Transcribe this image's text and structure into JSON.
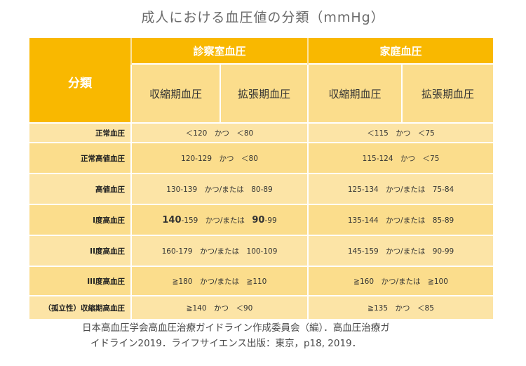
{
  "title": "成人における血圧値の分類（mmHg）",
  "header": {
    "category": "分類",
    "clinic": "診察室血圧",
    "home": "家庭血圧",
    "systolic": "収縮期血圧",
    "diastolic": "拡張期血圧"
  },
  "rows": [
    {
      "category": "正常血圧",
      "clinic": "＜120　かつ　＜80",
      "home": "＜115　かつ　＜75"
    },
    {
      "category": "正常高値血圧",
      "clinic": "120-129　かつ　＜80",
      "home": "115-124　かつ　＜75"
    },
    {
      "category": "高値血圧",
      "clinic": "130-139　かつ/または　80-89",
      "home": "125-134　かつ/または　75-84"
    },
    {
      "category": "I度高血圧",
      "clinic_sys_bold": "140",
      "clinic_sys_rest": "-159",
      "clinic_mid": "　かつ/または　",
      "clinic_dia_bold": "90",
      "clinic_dia_rest": "-99",
      "home": "135-144　かつ/または　85-89"
    },
    {
      "category": "II度高血圧",
      "clinic": "160-179　かつ/または　100-109",
      "home": "145-159　かつ/または　90-99"
    },
    {
      "category": "III度高血圧",
      "clinic": "≧180　かつ/または　≧110",
      "home": "≧160　かつ/または　≧100"
    },
    {
      "category": "（孤立性）収縮期高血圧",
      "clinic": "≧140　かつ　＜90",
      "home": "≧135　かつ　＜85"
    }
  ],
  "source": {
    "line1": "日本高血圧学会高血圧治療ガイドライン作成委員会（編）．高血圧治療ガ",
    "line2": "イドライン2019．ライフサイエンス出版：東京，p18, 2019．"
  },
  "colors": {
    "header_orange": "#f9b800",
    "cell_light": "#fbdd8c",
    "highlight_pink": "#e8407a"
  }
}
